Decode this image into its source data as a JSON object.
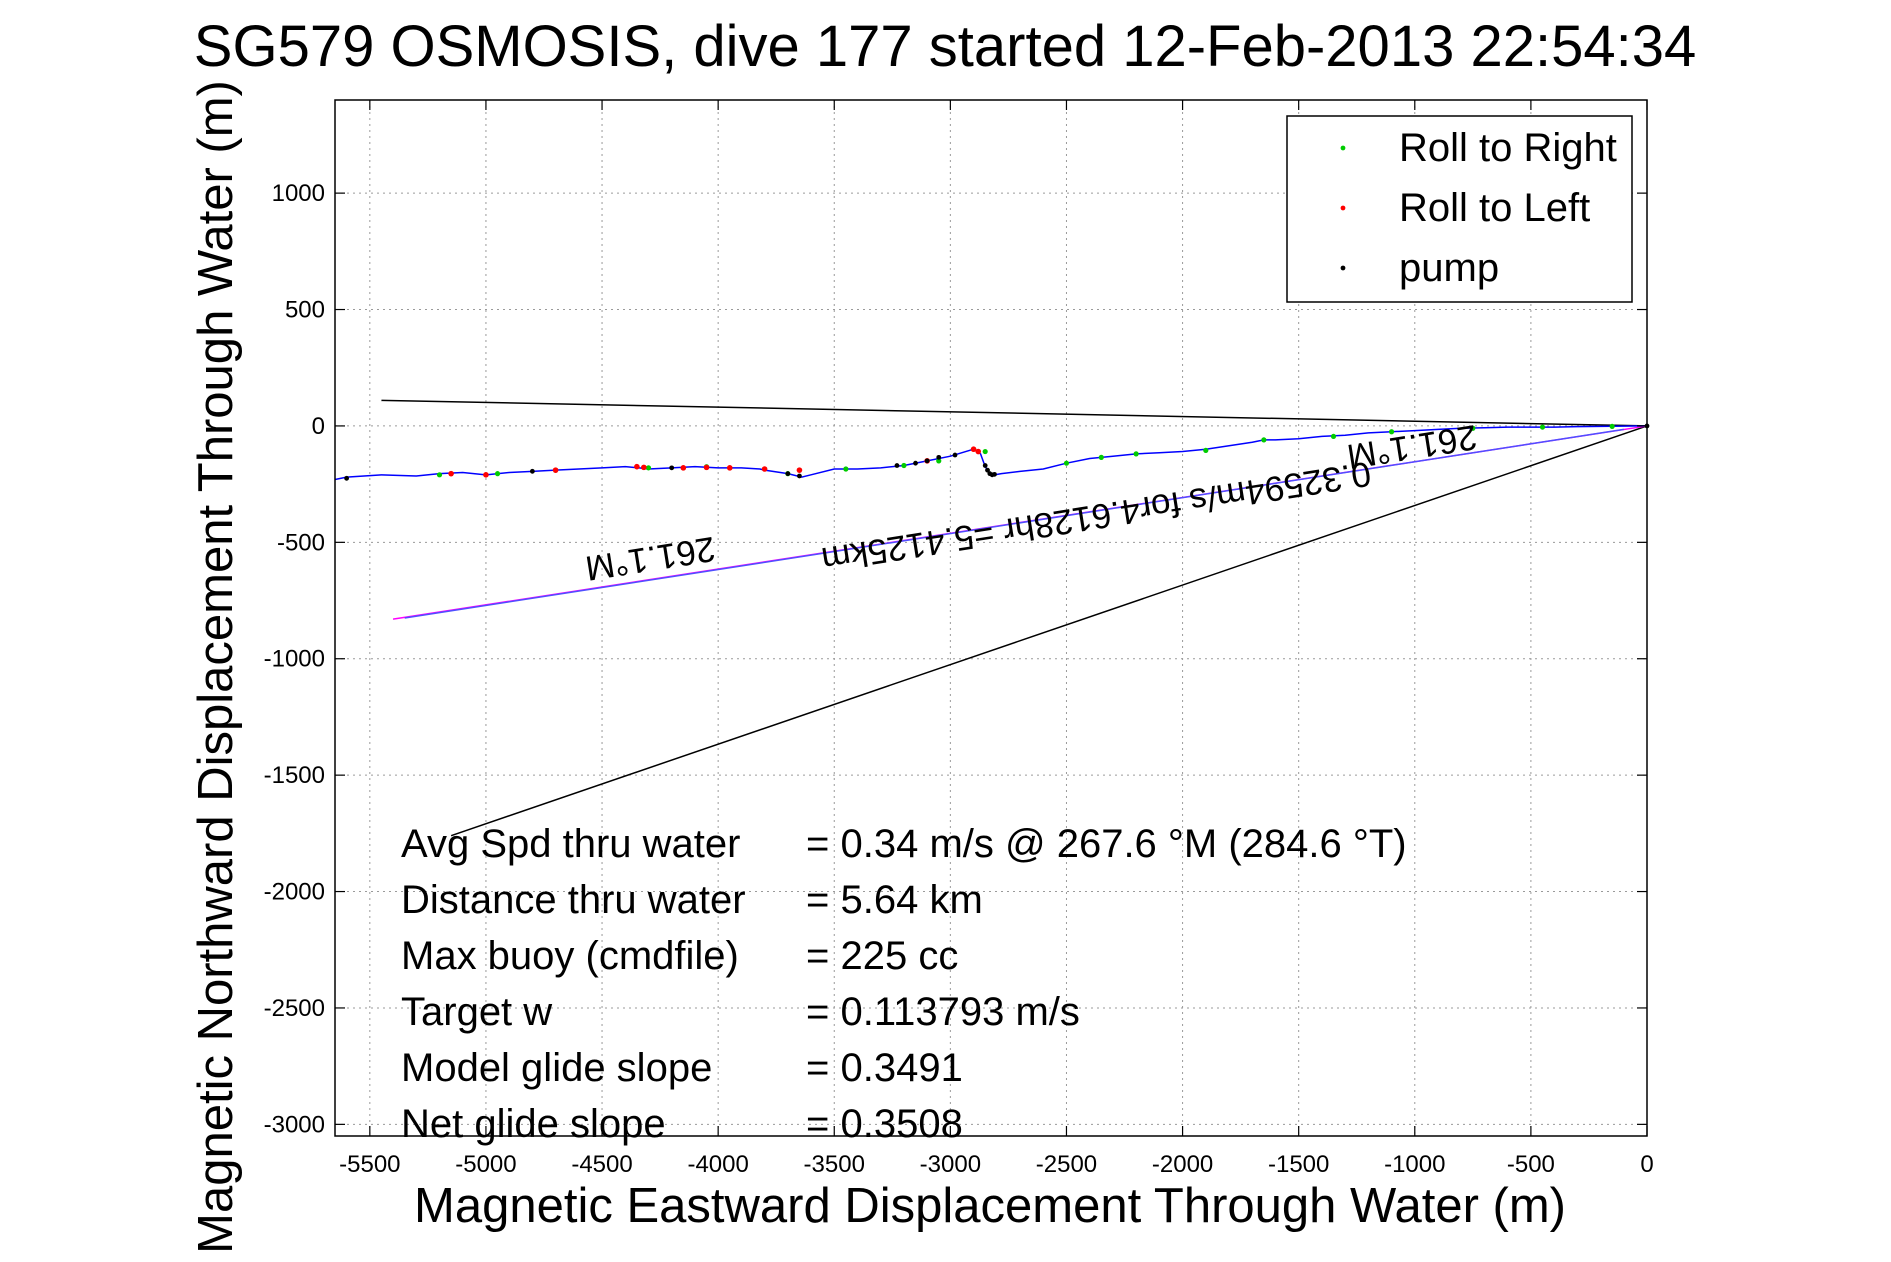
{
  "chart_data": {
    "type": "line",
    "title": "SG579 OSMOSIS, dive 177 started 12-Feb-2013 22:54:34",
    "xlabel": "Magnetic Eastward Displacement Through Water (m)",
    "ylabel": "Magnetic Northward Displacement Through Water (m)",
    "xlim": [
      -5650,
      0
    ],
    "ylim": [
      -3050,
      1400
    ],
    "xticks": [
      -5500,
      -5000,
      -4500,
      -4000,
      -3500,
      -3000,
      -2500,
      -2000,
      -1500,
      -1000,
      -500,
      0
    ],
    "xtick_labels": [
      "-5500",
      "-5000",
      "-4500",
      "-4000",
      "-3500",
      "-3000",
      "-2500",
      "-2000",
      "-1500",
      "-1000",
      "-500",
      "0"
    ],
    "yticks": [
      -3000,
      -2500,
      -2000,
      -1500,
      -1000,
      -500,
      0,
      500,
      1000
    ],
    "ytick_labels": [
      "-3000",
      "-2500",
      "-2000",
      "-1500",
      "-1000",
      "-500",
      "0",
      "500",
      "1000"
    ],
    "grid": true,
    "legend_position": "top-right",
    "legend": [
      {
        "label": "Roll to Right",
        "color": "#00cc00"
      },
      {
        "label": "Roll to Left",
        "color": "#ff0000"
      },
      {
        "label": "pump",
        "color": "#000000"
      }
    ],
    "track": {
      "name": "track",
      "color": "#0000ff",
      "x": [
        -5650,
        -5600,
        -5450,
        -5300,
        -5200,
        -5100,
        -5000,
        -4900,
        -4800,
        -4700,
        -4600,
        -4500,
        -4400,
        -4340,
        -4300,
        -4200,
        -4100,
        -4000,
        -3900,
        -3820,
        -3800,
        -3700,
        -3640,
        -3600,
        -3500,
        -3400,
        -3300,
        -3200,
        -3100,
        -3000,
        -2950,
        -2900,
        -2870,
        -2850,
        -2830,
        -2810,
        -2780,
        -2700,
        -2600,
        -2500,
        -2400,
        -2300,
        -2200,
        -2100,
        -2000,
        -1900,
        -1800,
        -1700,
        -1650,
        -1600,
        -1500,
        -1400,
        -1300,
        -1200,
        -1100,
        -1000,
        -900,
        -800,
        -700,
        -600,
        -500,
        -400,
        -300,
        -200,
        -100,
        0
      ],
      "y": [
        -230,
        -220,
        -210,
        -215,
        -205,
        -200,
        -210,
        -200,
        -195,
        -190,
        -185,
        -180,
        -175,
        -180,
        -185,
        -180,
        -175,
        -180,
        -180,
        -185,
        -190,
        -205,
        -220,
        -210,
        -185,
        -185,
        -180,
        -170,
        -150,
        -130,
        -115,
        -100,
        -120,
        -175,
        -205,
        -210,
        -205,
        -195,
        -185,
        -160,
        -140,
        -130,
        -120,
        -115,
        -110,
        -100,
        -85,
        -70,
        -60,
        -60,
        -55,
        -45,
        -40,
        -30,
        -25,
        -20,
        -15,
        -10,
        -8,
        -5,
        -5,
        -5,
        -3,
        -2,
        -1,
        0
      ]
    },
    "roll_right_x": [
      -5200,
      -4950,
      -4700,
      -4300,
      -4050,
      -3700,
      -3450,
      -3200,
      -3050,
      -2850,
      -2500,
      -2350,
      -2200,
      -1900,
      -1650,
      -1350,
      -1100,
      -750,
      -450,
      -150
    ],
    "roll_right_y": [
      -210,
      -205,
      -190,
      -180,
      -175,
      -205,
      -185,
      -170,
      -150,
      -110,
      -160,
      -135,
      -120,
      -105,
      -60,
      -45,
      -25,
      -10,
      -5,
      -2
    ],
    "roll_left_x": [
      -5150,
      -5000,
      -4700,
      -4350,
      -4320,
      -4150,
      -4050,
      -3950,
      -3800,
      -3650,
      -3100,
      -2900,
      -2880
    ],
    "roll_left_y": [
      -205,
      -210,
      -190,
      -175,
      -178,
      -180,
      -178,
      -180,
      -185,
      -190,
      -150,
      -100,
      -110
    ],
    "pump_x": [
      -5600,
      -4800,
      -4200,
      -3700,
      -3650,
      -3230,
      -3150,
      -3100,
      -3050,
      -2980,
      -2850,
      -2840,
      -2830,
      -2820,
      -2810,
      0
    ],
    "pump_y": [
      -225,
      -195,
      -180,
      -205,
      -215,
      -170,
      -160,
      -150,
      -135,
      -125,
      -170,
      -190,
      -205,
      -210,
      -208,
      0
    ],
    "lines": [
      {
        "name": "upper bound",
        "color": "#000000",
        "x": [
          0,
          -5450
        ],
        "y": [
          0,
          110
        ]
      },
      {
        "name": "lower bound",
        "color": "#000000",
        "x": [
          0,
          -5150
        ],
        "y": [
          0,
          -1760
        ]
      },
      {
        "name": "current heading",
        "color": "#ff00ff",
        "x": [
          0,
          -5400
        ],
        "y": [
          0,
          -830
        ]
      },
      {
        "name": "current heading overlay",
        "color": "#4f4fff",
        "x": [
          -100,
          -5350
        ],
        "y": [
          -15,
          -825
        ]
      }
    ],
    "annotations": [
      {
        "text": "261.1°M",
        "x": -4300,
        "y": -520,
        "rotate": 171
      },
      {
        "text": "261.1°M",
        "x": -1020,
        "y": -40,
        "rotate": 171
      },
      {
        "text": "0.32594m/s for4.6128hr =5.4125km",
        "x": -2380,
        "y": -340,
        "rotate": 171
      }
    ],
    "stats": [
      {
        "label": "Avg Spd thru water",
        "value": "=  0.34 m/s @ 267.6 °M (284.6 °T)"
      },
      {
        "label": "Distance thru water",
        "value": "=  5.64 km"
      },
      {
        "label": "Max buoy (cmdfile)",
        "value": "= 225 cc"
      },
      {
        "label": "Target w",
        "value": "= 0.113793 m/s"
      },
      {
        "label": "Model glide slope",
        "value": "= 0.3491"
      },
      {
        "label": "Net glide slope",
        "value": "= 0.3508"
      }
    ]
  }
}
